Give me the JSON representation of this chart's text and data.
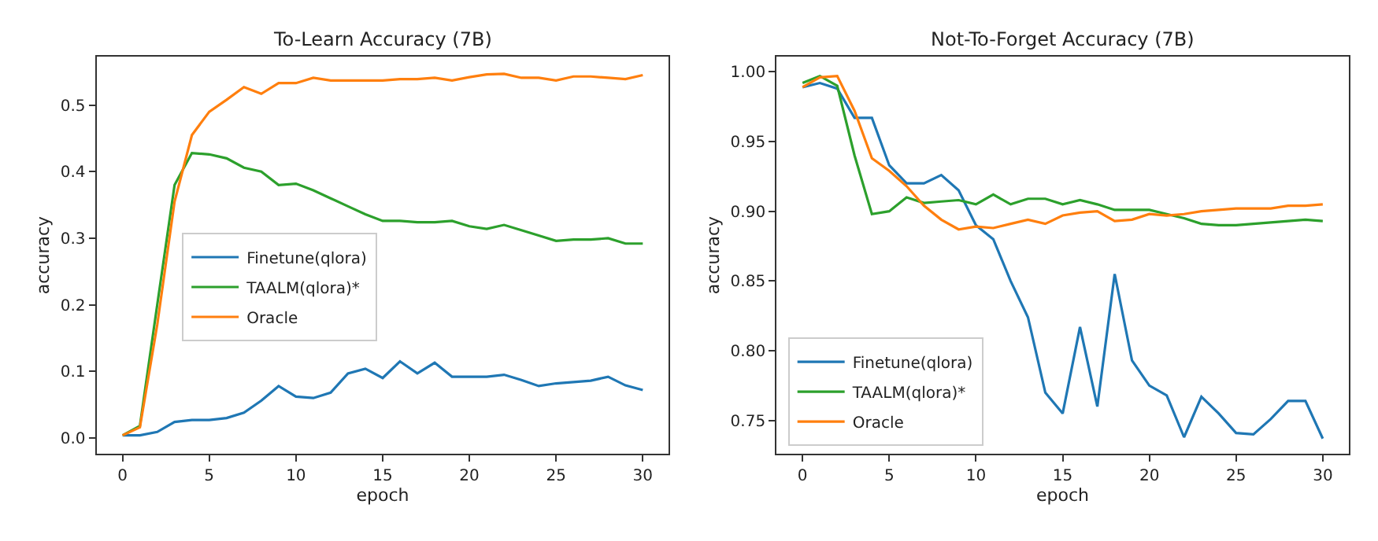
{
  "chart_data": [
    {
      "type": "line",
      "title": "To-Learn Accuracy (7B)",
      "xlabel": "epoch",
      "ylabel": "accuracy",
      "x": [
        0,
        1,
        2,
        3,
        4,
        5,
        6,
        7,
        8,
        9,
        10,
        11,
        12,
        13,
        14,
        15,
        16,
        17,
        18,
        19,
        20,
        21,
        22,
        23,
        24,
        25,
        26,
        27,
        28,
        29,
        30
      ],
      "xlim": [
        -1.5,
        31.5
      ],
      "xticks": [
        0,
        5,
        10,
        15,
        20,
        25,
        30
      ],
      "ylim": [
        -0.024,
        0.573
      ],
      "yticks": [
        {
          "value": 0,
          "label": "0.0"
        },
        0.1,
        0.2,
        0.3,
        0.4,
        0.5
      ],
      "legend": "center",
      "marker": "none",
      "line_style": "solid",
      "series": [
        {
          "name": "Finetune(qlora)",
          "color": "#1f77b4",
          "values": [
            0.004,
            0.004,
            0.009,
            0.024,
            0.027,
            0.027,
            0.03,
            0.038,
            0.056,
            0.078,
            0.062,
            0.06,
            0.068,
            0.097,
            0.104,
            0.09,
            0.115,
            0.097,
            0.113,
            0.092,
            0.092,
            0.092,
            0.095,
            0.087,
            0.078,
            0.082,
            0.084,
            0.086,
            0.092,
            0.079,
            0.072
          ]
        },
        {
          "name": "TAALM(qlora)*",
          "color": "#2ca02c",
          "values": [
            0.004,
            0.018,
            0.2,
            0.38,
            0.428,
            0.426,
            0.42,
            0.406,
            0.4,
            0.38,
            0.382,
            0.372,
            0.36,
            0.348,
            0.336,
            0.326,
            0.326,
            0.324,
            0.324,
            0.326,
            0.318,
            0.314,
            0.32,
            0.312,
            0.304,
            0.296,
            0.298,
            0.298,
            0.3,
            0.292,
            0.292
          ]
        },
        {
          "name": "Oracle",
          "color": "#ff7f0e",
          "values": [
            0.004,
            0.016,
            0.17,
            0.355,
            0.455,
            0.49,
            0.508,
            0.527,
            0.517,
            0.533,
            0.533,
            0.541,
            0.537,
            0.537,
            0.537,
            0.537,
            0.539,
            0.539,
            0.541,
            0.537,
            0.542,
            0.546,
            0.547,
            0.541,
            0.541,
            0.537,
            0.543,
            0.543,
            0.541,
            0.539,
            0.545
          ]
        }
      ]
    },
    {
      "type": "line",
      "title": "Not-To-Forget Accuracy (7B)",
      "xlabel": "epoch",
      "ylabel": "accuracy",
      "x": [
        0,
        1,
        2,
        3,
        4,
        5,
        6,
        7,
        8,
        9,
        10,
        11,
        12,
        13,
        14,
        15,
        16,
        17,
        18,
        19,
        20,
        21,
        22,
        23,
        24,
        25,
        26,
        27,
        28,
        29,
        30
      ],
      "xlim": [
        -1.5,
        31.5
      ],
      "xticks": [
        0,
        5,
        10,
        15,
        20,
        25,
        30
      ],
      "ylim": [
        0.726,
        1.011
      ],
      "yticks": [
        {
          "value": 0.75,
          "label": "0.75"
        },
        {
          "value": 0.8,
          "label": "0.80"
        },
        {
          "value": 0.85,
          "label": "0.85"
        },
        {
          "value": 0.9,
          "label": "0.90"
        },
        {
          "value": 0.95,
          "label": "0.95"
        },
        {
          "value": 1.0,
          "label": "1.00"
        }
      ],
      "legend": "bottom left",
      "marker": "none",
      "line_style": "solid",
      "series": [
        {
          "name": "Finetune(qlora)",
          "color": "#1f77b4",
          "values": [
            0.989,
            0.992,
            0.988,
            0.967,
            0.967,
            0.933,
            0.92,
            0.92,
            0.926,
            0.915,
            0.89,
            0.88,
            0.85,
            0.824,
            0.77,
            0.755,
            0.817,
            0.76,
            0.855,
            0.793,
            0.775,
            0.768,
            0.738,
            0.767,
            0.755,
            0.741,
            0.74,
            0.751,
            0.764,
            0.764,
            0.737
          ]
        },
        {
          "name": "TAALM(qlora)*",
          "color": "#2ca02c",
          "values": [
            0.992,
            0.997,
            0.99,
            0.94,
            0.898,
            0.9,
            0.91,
            0.906,
            0.907,
            0.908,
            0.905,
            0.912,
            0.905,
            0.909,
            0.909,
            0.905,
            0.908,
            0.905,
            0.901,
            0.901,
            0.901,
            0.898,
            0.895,
            0.891,
            0.89,
            0.89,
            0.891,
            0.892,
            0.893,
            0.894,
            0.893
          ]
        },
        {
          "name": "Oracle",
          "color": "#ff7f0e",
          "values": [
            0.989,
            0.996,
            0.997,
            0.972,
            0.938,
            0.929,
            0.918,
            0.904,
            0.894,
            0.887,
            0.889,
            0.888,
            0.891,
            0.894,
            0.891,
            0.897,
            0.899,
            0.9,
            0.893,
            0.894,
            0.898,
            0.897,
            0.898,
            0.9,
            0.901,
            0.902,
            0.902,
            0.902,
            0.904,
            0.904,
            0.905
          ]
        }
      ]
    }
  ]
}
